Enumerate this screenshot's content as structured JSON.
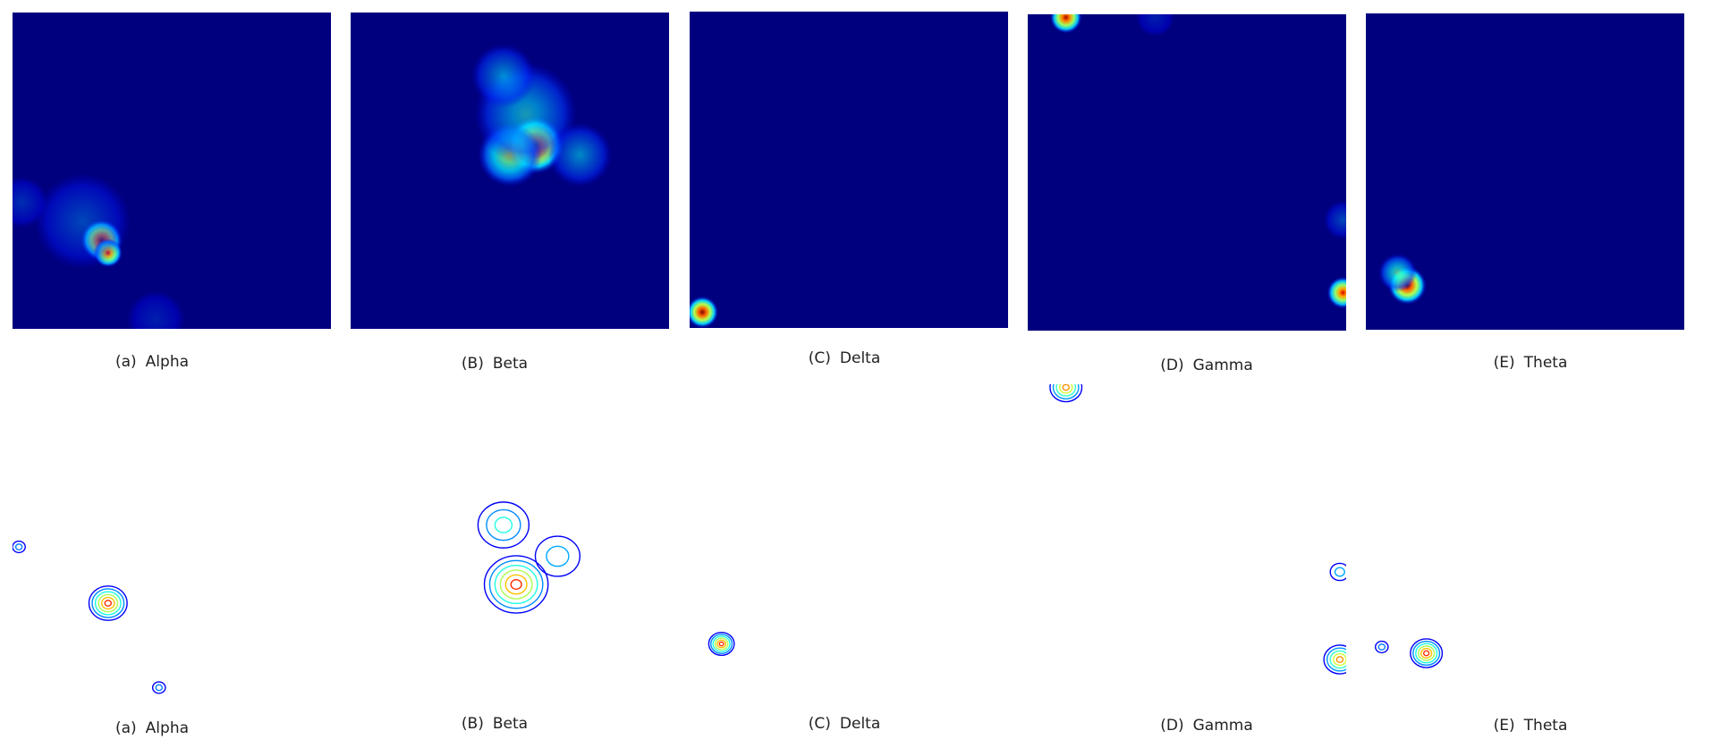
{
  "chart_data": [
    {
      "type": "heatmap",
      "row": "heatmap",
      "caption_letter": "(a)",
      "caption_name": "Alpha",
      "background": "#00007f",
      "blobs": [
        {
          "x": 0.28,
          "y": 0.28,
          "r": 0.065,
          "peak": 1.0
        },
        {
          "x": 0.3,
          "y": 0.24,
          "r": 0.045,
          "peak": 0.85
        },
        {
          "x": 0.22,
          "y": 0.34,
          "r": 0.15,
          "peak": 0.2
        },
        {
          "x": 0.03,
          "y": 0.4,
          "r": 0.08,
          "peak": 0.15
        },
        {
          "x": 0.45,
          "y": 0.03,
          "r": 0.09,
          "peak": 0.12
        }
      ]
    },
    {
      "type": "heatmap",
      "row": "heatmap",
      "caption_letter": "(B)",
      "caption_name": "Beta",
      "background": "#00007f",
      "blobs": [
        {
          "x": 0.58,
          "y": 0.58,
          "r": 0.09,
          "peak": 1.0
        },
        {
          "x": 0.5,
          "y": 0.55,
          "r": 0.1,
          "peak": 0.55
        },
        {
          "x": 0.55,
          "y": 0.68,
          "r": 0.16,
          "peak": 0.35
        },
        {
          "x": 0.48,
          "y": 0.8,
          "r": 0.1,
          "peak": 0.3
        },
        {
          "x": 0.72,
          "y": 0.55,
          "r": 0.1,
          "peak": 0.3
        }
      ]
    },
    {
      "type": "heatmap",
      "row": "heatmap",
      "caption_letter": "(C)",
      "caption_name": "Delta",
      "background": "#00007f",
      "blobs": [
        {
          "x": 0.04,
          "y": 0.05,
          "r": 0.05,
          "peak": 1.0
        }
      ]
    },
    {
      "type": "heatmap",
      "row": "heatmap",
      "caption_letter": "(D)",
      "caption_name": "Gamma",
      "background": "#00007f",
      "blobs": [
        {
          "x": 0.12,
          "y": 0.99,
          "r": 0.05,
          "peak": 0.95
        },
        {
          "x": 0.99,
          "y": 0.12,
          "r": 0.05,
          "peak": 0.9
        },
        {
          "x": 0.99,
          "y": 0.35,
          "r": 0.06,
          "peak": 0.2
        },
        {
          "x": 0.4,
          "y": 0.99,
          "r": 0.06,
          "peak": 0.12
        }
      ]
    },
    {
      "type": "heatmap",
      "row": "heatmap",
      "caption_letter": "(E)",
      "caption_name": "Theta",
      "background": "#00007f",
      "blobs": [
        {
          "x": 0.13,
          "y": 0.14,
          "r": 0.06,
          "peak": 1.0
        },
        {
          "x": 0.1,
          "y": 0.18,
          "r": 0.06,
          "peak": 0.45
        }
      ]
    },
    {
      "type": "contour",
      "row": "contour",
      "caption_letter": "(a)",
      "caption_name": "Alpha",
      "background": "#ffffff",
      "blobs": [
        {
          "x": 0.3,
          "y": 0.3,
          "r": 0.06,
          "peak": 1.0
        },
        {
          "x": 0.02,
          "y": 0.48,
          "r": 0.02,
          "peak": 0.3
        },
        {
          "x": 0.46,
          "y": 0.03,
          "r": 0.02,
          "peak": 0.3
        }
      ]
    },
    {
      "type": "contour",
      "row": "contour",
      "caption_letter": "(B)",
      "caption_name": "Beta",
      "background": "#ffffff",
      "blobs": [
        {
          "x": 0.52,
          "y": 0.36,
          "r": 0.1,
          "peak": 1.0
        },
        {
          "x": 0.48,
          "y": 0.55,
          "r": 0.08,
          "peak": 0.5
        },
        {
          "x": 0.65,
          "y": 0.45,
          "r": 0.07,
          "peak": 0.4
        }
      ]
    },
    {
      "type": "contour",
      "row": "contour",
      "caption_letter": "(C)",
      "caption_name": "Delta",
      "background": "#ffffff",
      "blobs": [
        {
          "x": 0.1,
          "y": 0.17,
          "r": 0.04,
          "peak": 1.0
        }
      ]
    },
    {
      "type": "contour",
      "row": "contour",
      "caption_letter": "(D)",
      "caption_name": "Gamma",
      "background": "#ffffff",
      "blobs": [
        {
          "x": 0.12,
          "y": 0.99,
          "r": 0.05,
          "peak": 0.9
        },
        {
          "x": 0.98,
          "y": 0.12,
          "r": 0.05,
          "peak": 0.9
        },
        {
          "x": 0.98,
          "y": 0.4,
          "r": 0.03,
          "peak": 0.4
        }
      ]
    },
    {
      "type": "contour",
      "row": "contour",
      "caption_letter": "(E)",
      "caption_name": "Theta",
      "background": "#ffffff",
      "blobs": [
        {
          "x": 0.19,
          "y": 0.14,
          "r": 0.05,
          "peak": 1.0
        },
        {
          "x": 0.05,
          "y": 0.16,
          "r": 0.02,
          "peak": 0.3
        }
      ]
    }
  ]
}
